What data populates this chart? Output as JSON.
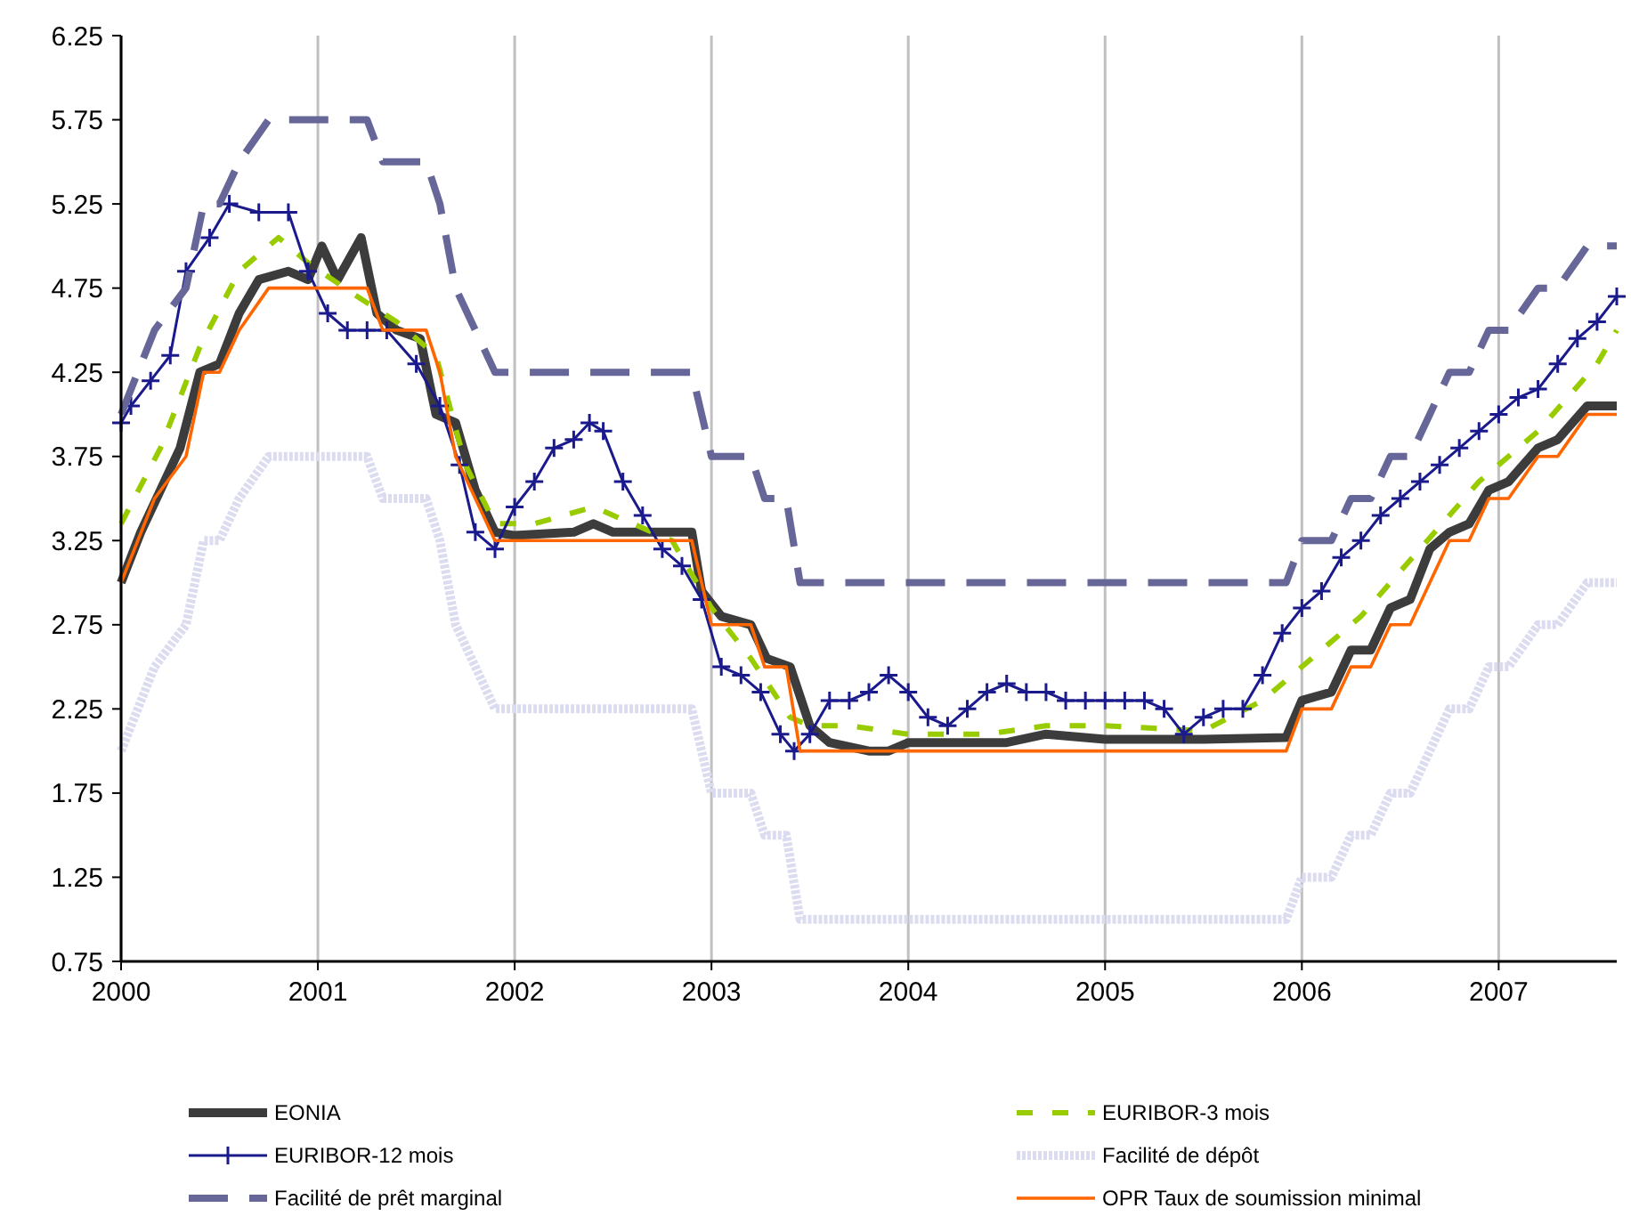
{
  "chart_data": {
    "type": "line",
    "xlim": [
      2000,
      2007.6
    ],
    "ylim": [
      0.75,
      6.25
    ],
    "xticks": [
      2000,
      2001,
      2002,
      2003,
      2004,
      2005,
      2006,
      2007
    ],
    "yticks": [
      0.75,
      1.25,
      1.75,
      2.25,
      2.75,
      3.25,
      3.75,
      4.25,
      4.75,
      5.25,
      5.75,
      6.25
    ],
    "grid": "x",
    "legend": "bottom",
    "series": [
      {
        "name": "EONIA",
        "color": "#3c3c3c",
        "line_style": "solid",
        "marker": "none",
        "x": [
          2000,
          2000.1,
          2000.2,
          2000.3,
          2000.4,
          2000.5,
          2000.6,
          2000.7,
          2000.85,
          2000.95,
          2001.02,
          2001.1,
          2001.22,
          2001.3,
          2001.4,
          2001.52,
          2001.6,
          2001.7,
          2001.8,
          2001.9,
          2002,
          2002.3,
          2002.4,
          2002.5,
          2002.9,
          2002.95,
          2003.05,
          2003.2,
          2003.28,
          2003.4,
          2003.5,
          2003.6,
          2003.8,
          2003.9,
          2004,
          2004.5,
          2004.7,
          2005,
          2005.5,
          2005.92,
          2006,
          2006.15,
          2006.25,
          2006.35,
          2006.45,
          2006.55,
          2006.65,
          2006.75,
          2006.85,
          2006.95,
          2007.05,
          2007.2,
          2007.3,
          2007.45,
          2007.6
        ],
        "values": [
          3.0,
          3.3,
          3.55,
          3.8,
          4.25,
          4.3,
          4.6,
          4.8,
          4.85,
          4.8,
          5.0,
          4.8,
          5.05,
          4.6,
          4.5,
          4.45,
          4.0,
          3.95,
          3.55,
          3.3,
          3.28,
          3.3,
          3.35,
          3.3,
          3.3,
          2.95,
          2.8,
          2.75,
          2.55,
          2.5,
          2.15,
          2.05,
          2.0,
          2.0,
          2.05,
          2.05,
          2.1,
          2.07,
          2.07,
          2.08,
          2.3,
          2.35,
          2.6,
          2.6,
          2.85,
          2.9,
          3.2,
          3.3,
          3.35,
          3.55,
          3.6,
          3.8,
          3.85,
          4.05,
          4.05
        ]
      },
      {
        "name": "EURIBOR-3 mois",
        "color": "#99cc00",
        "line_style": "dashed",
        "marker": "none",
        "x": [
          2000,
          2000.2,
          2000.4,
          2000.6,
          2000.8,
          2000.95,
          2001.2,
          2001.4,
          2001.6,
          2001.75,
          2001.9,
          2002.1,
          2002.4,
          2002.6,
          2002.8,
          2003,
          2003.2,
          2003.4,
          2003.5,
          2003.7,
          2004,
          2004.4,
          2004.7,
          2005,
          2005.5,
          2005.8,
          2006,
          2006.3,
          2006.6,
          2006.9,
          2007.2,
          2007.5,
          2007.6
        ],
        "values": [
          3.35,
          3.8,
          4.4,
          4.85,
          5.05,
          4.9,
          4.7,
          4.55,
          4.35,
          3.7,
          3.35,
          3.35,
          3.45,
          3.35,
          3.25,
          2.85,
          2.55,
          2.2,
          2.15,
          2.15,
          2.1,
          2.1,
          2.15,
          2.15,
          2.12,
          2.3,
          2.5,
          2.8,
          3.2,
          3.6,
          3.9,
          4.3,
          4.5
        ]
      },
      {
        "name": "EURIBOR-12 mois",
        "color": "#1a1a8c",
        "line_style": "solid",
        "marker": "cross",
        "x": [
          2000,
          2000.05,
          2000.15,
          2000.25,
          2000.33,
          2000.45,
          2000.55,
          2000.7,
          2000.85,
          2000.95,
          2001.05,
          2001.15,
          2001.25,
          2001.35,
          2001.5,
          2001.62,
          2001.72,
          2001.8,
          2001.9,
          2002,
          2002.1,
          2002.2,
          2002.3,
          2002.38,
          2002.45,
          2002.55,
          2002.65,
          2002.75,
          2002.85,
          2002.95,
          2003.05,
          2003.15,
          2003.25,
          2003.35,
          2003.42,
          2003.5,
          2003.6,
          2003.7,
          2003.8,
          2003.9,
          2004,
          2004.1,
          2004.2,
          2004.3,
          2004.4,
          2004.5,
          2004.6,
          2004.7,
          2004.8,
          2004.9,
          2005,
          2005.1,
          2005.2,
          2005.3,
          2005.4,
          2005.5,
          2005.6,
          2005.7,
          2005.8,
          2005.9,
          2006,
          2006.1,
          2006.2,
          2006.3,
          2006.4,
          2006.5,
          2006.6,
          2006.7,
          2006.8,
          2006.9,
          2007,
          2007.1,
          2007.2,
          2007.3,
          2007.4,
          2007.5,
          2007.6
        ],
        "values": [
          3.95,
          4.05,
          4.2,
          4.35,
          4.85,
          5.05,
          5.25,
          5.2,
          5.2,
          4.85,
          4.6,
          4.5,
          4.5,
          4.5,
          4.3,
          4.05,
          3.7,
          3.3,
          3.2,
          3.45,
          3.6,
          3.8,
          3.85,
          3.95,
          3.9,
          3.6,
          3.4,
          3.2,
          3.1,
          2.9,
          2.5,
          2.45,
          2.35,
          2.1,
          2.0,
          2.1,
          2.3,
          2.3,
          2.35,
          2.45,
          2.35,
          2.2,
          2.15,
          2.25,
          2.35,
          2.4,
          2.35,
          2.35,
          2.3,
          2.3,
          2.3,
          2.3,
          2.3,
          2.25,
          2.1,
          2.2,
          2.25,
          2.25,
          2.45,
          2.7,
          2.85,
          2.95,
          3.15,
          3.25,
          3.4,
          3.5,
          3.6,
          3.7,
          3.8,
          3.9,
          4.0,
          4.1,
          4.15,
          4.3,
          4.45,
          4.55,
          4.7
        ]
      },
      {
        "name": "Facilité de dépôt",
        "color": "#dcdcf0",
        "line_style": "dotted",
        "marker": "none",
        "x": [
          2000,
          2000.17,
          2000.33,
          2000.42,
          2000.5,
          2000.6,
          2000.75,
          2001.25,
          2001.33,
          2001.55,
          2001.62,
          2001.7,
          2001.8,
          2001.9,
          2002.9,
          2003,
          2003.2,
          2003.27,
          2003.38,
          2003.45,
          2005.92,
          2006,
          2006.15,
          2006.25,
          2006.35,
          2006.45,
          2006.55,
          2006.65,
          2006.75,
          2006.85,
          2006.95,
          2007.05,
          2007.2,
          2007.3,
          2007.45,
          2007.6
        ],
        "values": [
          2.0,
          2.5,
          2.75,
          3.25,
          3.25,
          3.5,
          3.75,
          3.75,
          3.5,
          3.5,
          3.25,
          2.75,
          2.5,
          2.25,
          2.25,
          1.75,
          1.75,
          1.5,
          1.5,
          1.0,
          1.0,
          1.25,
          1.25,
          1.5,
          1.5,
          1.75,
          1.75,
          2.0,
          2.25,
          2.25,
          2.5,
          2.5,
          2.75,
          2.75,
          3.0,
          3.0
        ]
      },
      {
        "name": "Facilité de prêt marginal",
        "color": "#666699",
        "line_style": "dashed",
        "marker": "none",
        "x": [
          2000,
          2000.17,
          2000.33,
          2000.42,
          2000.5,
          2000.6,
          2000.75,
          2001.25,
          2001.33,
          2001.55,
          2001.62,
          2001.7,
          2001.8,
          2001.9,
          2002.9,
          2003,
          2003.2,
          2003.27,
          2003.38,
          2003.45,
          2005.92,
          2006,
          2006.15,
          2006.25,
          2006.35,
          2006.45,
          2006.55,
          2006.65,
          2006.75,
          2006.85,
          2006.95,
          2007.05,
          2007.2,
          2007.3,
          2007.45,
          2007.6
        ],
        "values": [
          4.0,
          4.5,
          4.75,
          5.25,
          5.25,
          5.5,
          5.75,
          5.75,
          5.5,
          5.5,
          5.25,
          4.75,
          4.5,
          4.25,
          4.25,
          3.75,
          3.75,
          3.5,
          3.5,
          3.0,
          3.0,
          3.25,
          3.25,
          3.5,
          3.5,
          3.75,
          3.75,
          4.0,
          4.25,
          4.25,
          4.5,
          4.5,
          4.75,
          4.75,
          5.0,
          5.0
        ]
      },
      {
        "name": "OPR Taux de soumission minimal",
        "color": "#ff6600",
        "line_style": "solid",
        "marker": "none",
        "x": [
          2000,
          2000.17,
          2000.33,
          2000.42,
          2000.5,
          2000.6,
          2000.75,
          2001.25,
          2001.33,
          2001.55,
          2001.62,
          2001.7,
          2001.8,
          2001.9,
          2002.9,
          2003,
          2003.2,
          2003.27,
          2003.38,
          2003.45,
          2005.92,
          2006,
          2006.15,
          2006.25,
          2006.35,
          2006.45,
          2006.55,
          2006.65,
          2006.75,
          2006.85,
          2006.95,
          2007.05,
          2007.2,
          2007.3,
          2007.45,
          2007.6
        ],
        "values": [
          3.0,
          3.5,
          3.75,
          4.25,
          4.25,
          4.5,
          4.75,
          4.75,
          4.5,
          4.5,
          4.25,
          3.75,
          3.5,
          3.25,
          3.25,
          2.75,
          2.75,
          2.5,
          2.5,
          2.0,
          2.0,
          2.25,
          2.25,
          2.5,
          2.5,
          2.75,
          2.75,
          3.0,
          3.25,
          3.25,
          3.5,
          3.5,
          3.75,
          3.75,
          4.0,
          4.0
        ]
      }
    ]
  }
}
